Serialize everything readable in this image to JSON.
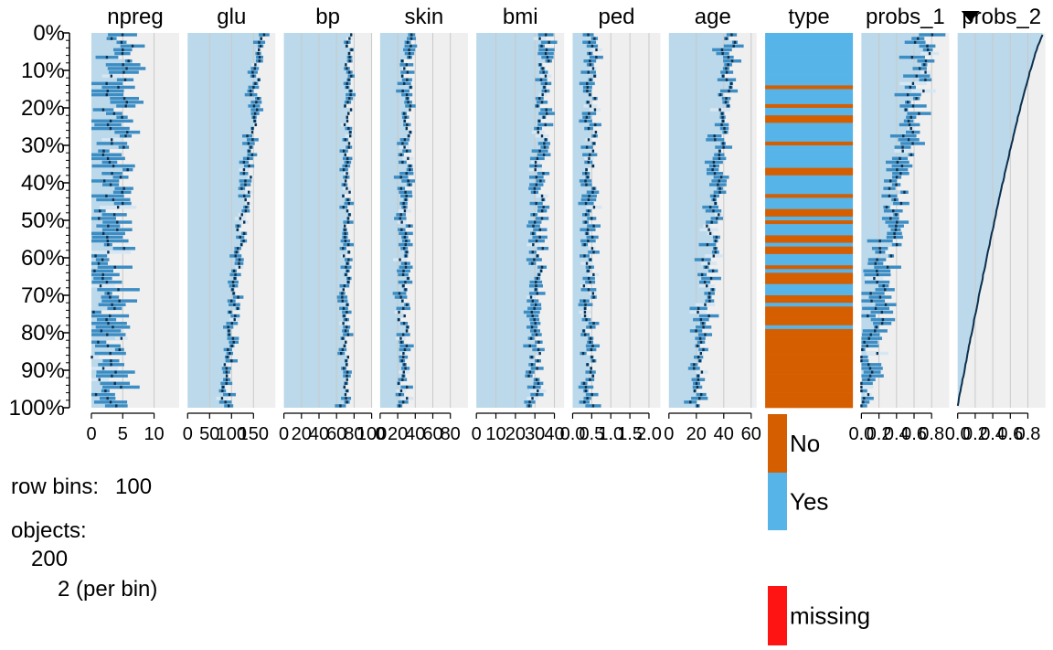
{
  "chart_data": {
    "type": "tableplot",
    "percent_labels": [
      "0%",
      "10%",
      "20%",
      "30%",
      "40%",
      "50%",
      "60%",
      "70%",
      "80%",
      "90%",
      "100%"
    ],
    "columns": [
      {
        "name": "npreg",
        "kind": "numeric",
        "axis_min": 0,
        "axis_max": 14,
        "ticks": [
          0,
          5,
          10
        ],
        "tick_labels": [
          "0",
          "5",
          "10"
        ],
        "center": 3.2,
        "spread": 3.5,
        "trend": -2.0
      },
      {
        "name": "glu",
        "kind": "numeric",
        "axis_min": 0,
        "axis_max": 200,
        "ticks": [
          0,
          50,
          100,
          150
        ],
        "tick_labels": [
          "0",
          "50",
          "100",
          "150"
        ],
        "center": 125,
        "spread": 14,
        "trend": -80
      },
      {
        "name": "bp",
        "kind": "numeric",
        "axis_min": 0,
        "axis_max": 100,
        "ticks": [
          0,
          20,
          40,
          60,
          80,
          100
        ],
        "tick_labels": [
          "0",
          "20",
          "40",
          "60",
          "80",
          "100"
        ],
        "center": 71,
        "spread": 6,
        "trend": -5
      },
      {
        "name": "skin",
        "kind": "numeric",
        "axis_min": 0,
        "axis_max": 100,
        "ticks": [
          0,
          20,
          40,
          60,
          80
        ],
        "tick_labels": [
          "0",
          "20",
          "40",
          "60",
          "80"
        ],
        "center": 28,
        "spread": 8,
        "trend": -5
      },
      {
        "name": "bmi",
        "kind": "numeric",
        "axis_min": 0,
        "axis_max": 45,
        "ticks": [
          0,
          10,
          20,
          30,
          40
        ],
        "tick_labels": [
          "0",
          "10",
          "20",
          "30",
          "40"
        ],
        "center": 32,
        "spread": 4,
        "trend": -6
      },
      {
        "name": "ped",
        "kind": "numeric",
        "axis_min": 0,
        "axis_max": 2.3,
        "ticks": [
          0,
          0.5,
          1.0,
          1.5,
          2.0
        ],
        "tick_labels": [
          "0.0",
          "0.5",
          "1.0",
          "1.5",
          "2.0"
        ],
        "center": 0.45,
        "spread": 0.2,
        "trend": -0.1
      },
      {
        "name": "age",
        "kind": "numeric",
        "axis_min": 0,
        "axis_max": 64,
        "ticks": [
          0,
          20,
          40,
          60
        ],
        "tick_labels": [
          "0",
          "20",
          "40",
          "60"
        ],
        "center": 32,
        "spread": 7,
        "trend": -25
      },
      {
        "name": "type",
        "kind": "categorical",
        "levels": [
          "No",
          "Yes"
        ],
        "level_colors": [
          "#D55E00",
          "#56B4E9"
        ],
        "yes_fraction_start": 1.0,
        "yes_fraction_end": 0.0
      },
      {
        "name": "probs_1",
        "kind": "numeric",
        "axis_min": 0,
        "axis_max": 1,
        "ticks": [
          0,
          0.2,
          0.4,
          0.6,
          0.8
        ],
        "tick_labels": [
          "0.0",
          "0.2",
          "0.4",
          "0.6",
          "0.8"
        ],
        "center": 0.35,
        "spread": 0.15,
        "trend": -0.75
      },
      {
        "name": "probs_2",
        "kind": "numeric",
        "sorted": true,
        "sort_indicator": "descending",
        "axis_min": 0,
        "axis_max": 1,
        "ticks": [
          0,
          0.2,
          0.4,
          0.6,
          0.8
        ],
        "tick_labels": [
          "0.0",
          "0.2",
          "0.4",
          "0.6",
          "0.8"
        ],
        "start_value": 0.97,
        "end_value": 0.0
      }
    ],
    "row_bins_label": "row bins:",
    "row_bins_value": "100",
    "objects_label": "objects:",
    "objects_total": "200",
    "objects_per_bin": "2 (per bin)",
    "legend": [
      {
        "label": "No",
        "color": "#D55E00"
      },
      {
        "label": "Yes",
        "color": "#56B4E9"
      },
      {
        "label": "missing",
        "color": "#FF1414"
      }
    ],
    "colors": {
      "panel_bg": "#EFEFEF",
      "mean_area": "#BBD9EA",
      "bar": "#3C8DC4",
      "bar_light": "#D6E6F2",
      "mean_dot": "#0B2F4E",
      "grid": "#C9C9C9"
    }
  }
}
